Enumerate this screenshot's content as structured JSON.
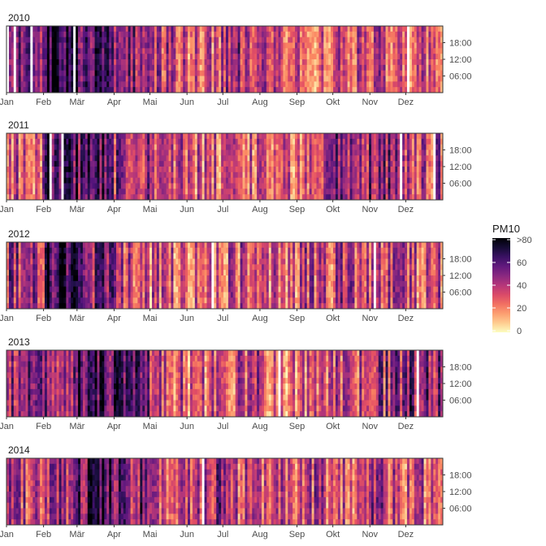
{
  "chart_data": {
    "type": "heatmap",
    "title": "",
    "xlabel": "",
    "ylabel": "",
    "x_tick_labels": [
      "Jan",
      "Feb",
      "Mär",
      "Apr",
      "Mai",
      "Jun",
      "Jul",
      "Aug",
      "Sep",
      "Okt",
      "Nov",
      "Dez"
    ],
    "y_tick_labels": [
      "18:00",
      "12:00",
      "06:00"
    ],
    "x_domain": "day of year (1–365)",
    "y_domain": "hour of day (0–23)",
    "panels": [
      {
        "year": "2010",
        "high_pollution_months": [
          "Feb",
          "Mär",
          "Apr",
          "Jul"
        ],
        "relative_level": [
          0.55,
          0.8,
          0.65,
          0.55,
          0.45,
          0.4,
          0.5,
          0.35,
          0.35,
          0.35,
          0.4,
          0.4
        ]
      },
      {
        "year": "2011",
        "high_pollution_months": [
          "Feb",
          "Mär",
          "Okt",
          "Nov"
        ],
        "relative_level": [
          0.4,
          0.75,
          0.7,
          0.5,
          0.4,
          0.35,
          0.4,
          0.35,
          0.4,
          0.55,
          0.6,
          0.45
        ]
      },
      {
        "year": "2012",
        "high_pollution_months": [
          "Jan",
          "Feb",
          "Mär"
        ],
        "relative_level": [
          0.5,
          0.8,
          0.6,
          0.4,
          0.35,
          0.35,
          0.4,
          0.35,
          0.4,
          0.45,
          0.45,
          0.35
        ]
      },
      {
        "year": "2013",
        "high_pollution_months": [
          "Mär",
          "Apr",
          "Dez"
        ],
        "relative_level": [
          0.55,
          0.55,
          0.75,
          0.65,
          0.4,
          0.35,
          0.4,
          0.35,
          0.35,
          0.4,
          0.5,
          0.6
        ]
      },
      {
        "year": "2014",
        "high_pollution_months": [
          "Mär",
          "Apr",
          "Jun"
        ],
        "relative_level": [
          0.45,
          0.5,
          0.7,
          0.6,
          0.45,
          0.5,
          0.4,
          0.35,
          0.4,
          0.4,
          0.45,
          0.4
        ]
      }
    ],
    "legend": {
      "title": "PM10",
      "labels": [
        ">80",
        "60",
        "40",
        "20",
        "0"
      ],
      "values": [
        80,
        60,
        40,
        20,
        0
      ],
      "range": [
        0,
        80
      ],
      "position": "right"
    },
    "colors": {
      "high": "#000004",
      "mid": "#b73779",
      "low": "#fcfdbf"
    }
  }
}
